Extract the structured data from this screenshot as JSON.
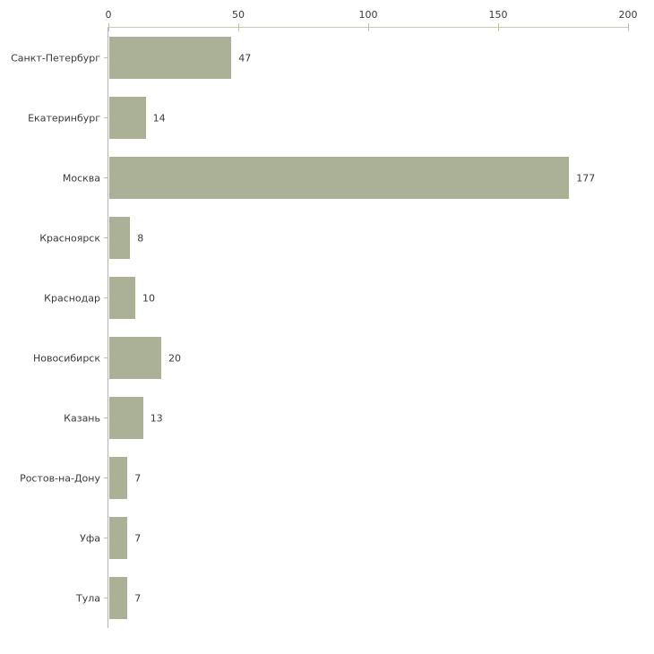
{
  "chart_data": {
    "type": "bar",
    "orientation": "horizontal",
    "title": "",
    "xlabel": "",
    "ylabel": "",
    "categories": [
      "Санкт-Петербург",
      "Екатеринбург",
      "Москва",
      "Красноярск",
      "Краснодар",
      "Новосибирск",
      "Казань",
      "Ростов-на-Дону",
      "Уфа",
      "Тула"
    ],
    "values": [
      47,
      14,
      177,
      8,
      10,
      20,
      13,
      7,
      7,
      7
    ],
    "value_labels": [
      "47",
      "14",
      "177",
      "8",
      "10",
      "20",
      "13",
      "7",
      "7",
      "7"
    ],
    "xlim": [
      0,
      200
    ],
    "x_ticks": [
      0,
      50,
      100,
      150,
      200
    ],
    "x_tick_labels": [
      "0",
      "50",
      "100",
      "150",
      "200"
    ],
    "grid": false,
    "legend": "none",
    "axis_position": "top-left",
    "colors": {
      "bar_fill": "#abb197",
      "axis_line_horizontal": "#c9c9b6",
      "axis_line_vertical": "#b5b5b5",
      "tick_mark": "#c2c39b",
      "text": "#3a3a3a",
      "background": "#ffffff"
    }
  }
}
